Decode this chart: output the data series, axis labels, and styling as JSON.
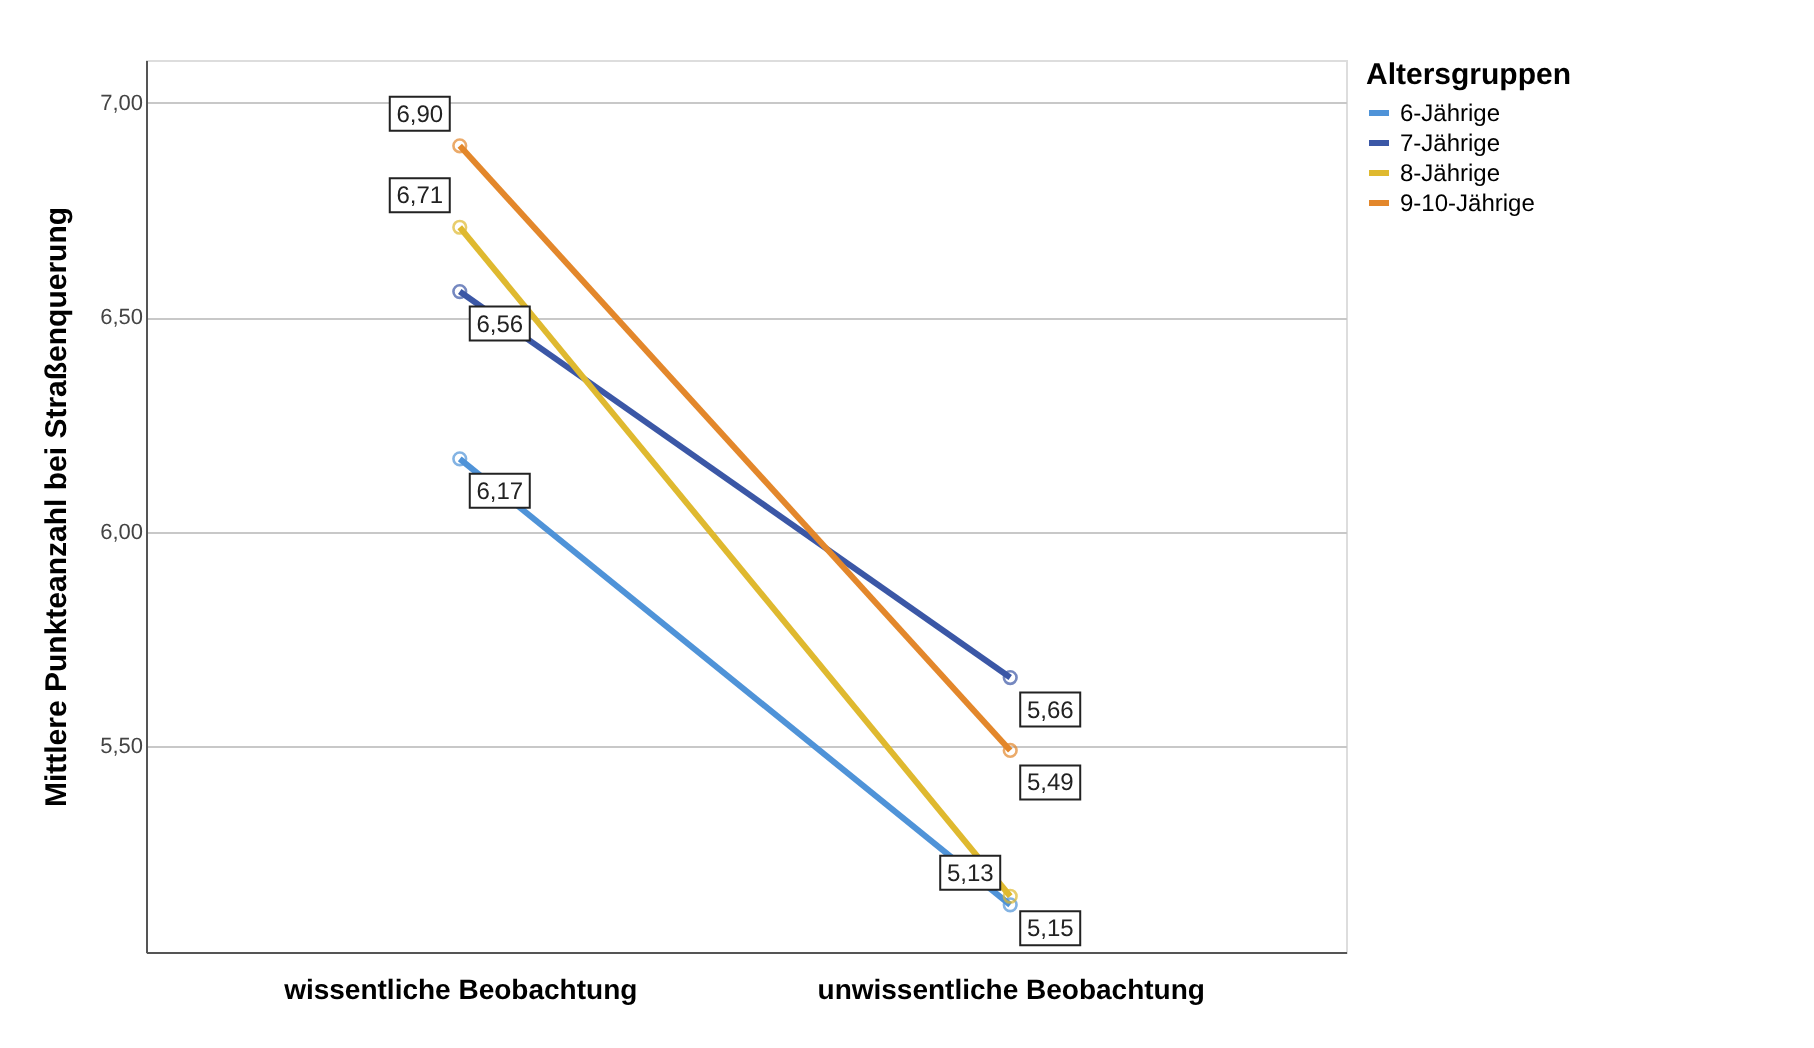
{
  "chart_data": {
    "type": "line",
    "ylabel": "Mittlere Punkteanzahl bei Straßenquerung",
    "legend_title": "Altersgruppen",
    "categories": [
      "wissentliche Beobachtung",
      "unwissentliche Beobachtung"
    ],
    "series": [
      {
        "name": "6-Jährige",
        "color": "#4f93d8",
        "values": [
          6.17,
          5.13
        ],
        "value_labels": [
          "6,17",
          "5,13"
        ]
      },
      {
        "name": "7-Jährige",
        "color": "#3b57a6",
        "values": [
          6.56,
          5.66
        ],
        "value_labels": [
          "6,56",
          "5,66"
        ]
      },
      {
        "name": "8-Jährige",
        "color": "#dfb92f",
        "values": [
          6.71,
          5.15
        ],
        "value_labels": [
          "6,71",
          "5,15"
        ]
      },
      {
        "name": "9-10-Jährige",
        "color": "#e3872b",
        "values": [
          6.9,
          5.49
        ],
        "value_labels": [
          "6,90",
          "5,49"
        ]
      }
    ],
    "ylim": [
      5.02,
      7.1
    ],
    "yticks": [
      {
        "value": 5.5,
        "label": "5,50"
      },
      {
        "value": 6,
        "label": "6,00"
      },
      {
        "value": 6.5,
        "label": "6,50"
      },
      {
        "value": 7,
        "label": "7,00"
      }
    ],
    "grid": "y",
    "legend": "top right",
    "marker": "circle",
    "line_style": "solid"
  }
}
